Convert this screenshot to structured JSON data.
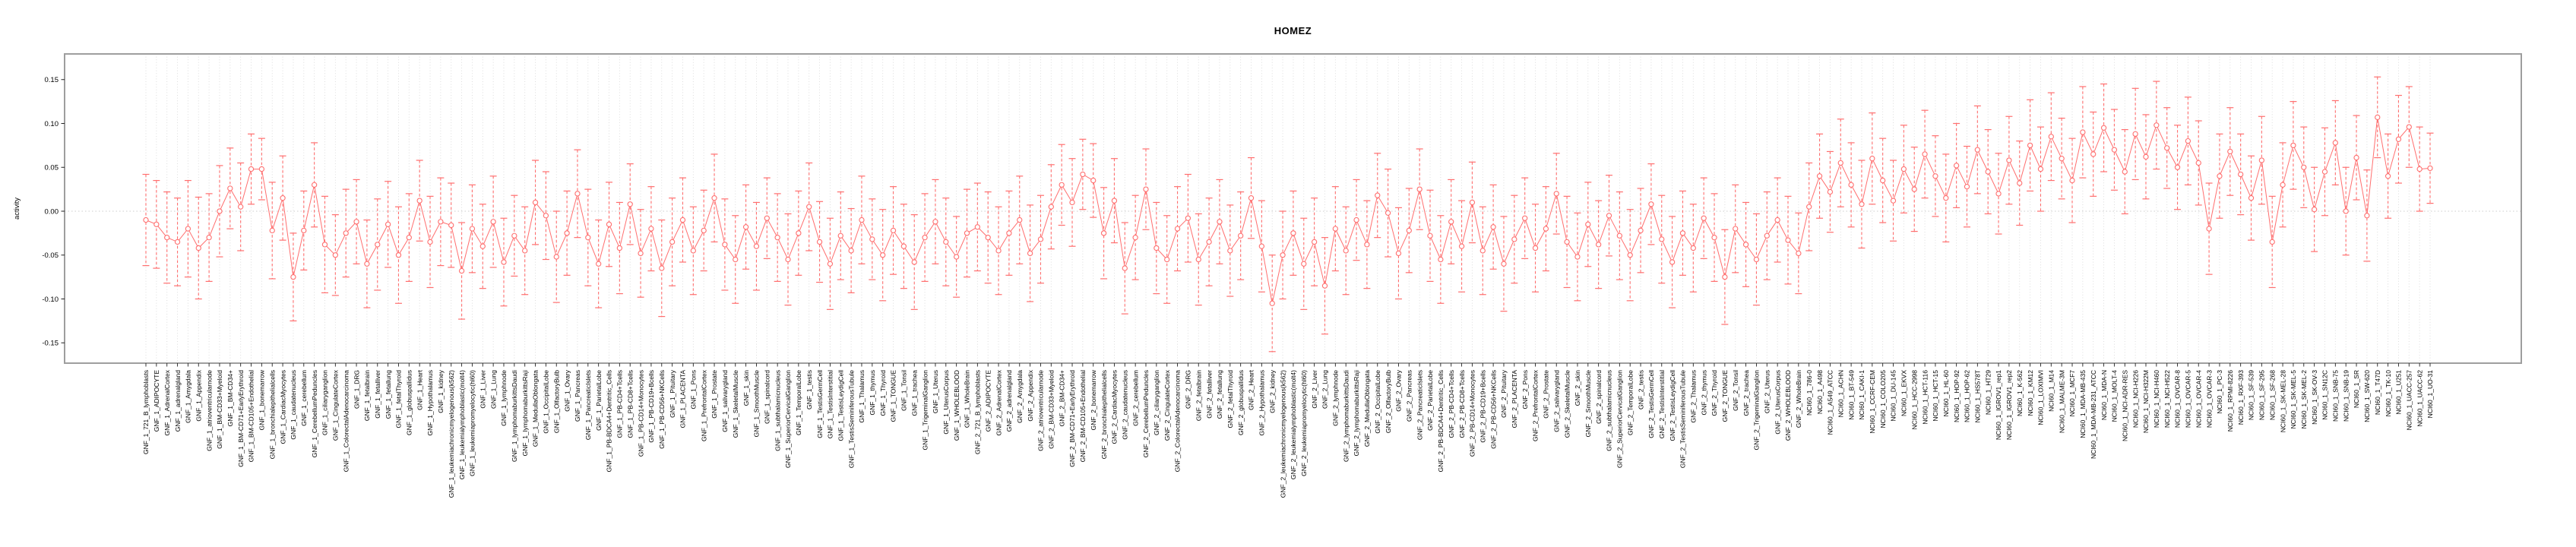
{
  "title": "HOMEZ",
  "colors": {
    "series": "#ff6f6f",
    "marker_fill": "#ffffff",
    "panel_border": "#9e9e9e",
    "gridline": "#d9d9d9",
    "zero_line": "#cccccc",
    "tick": "#222222",
    "text": "#000000",
    "background": "#ffffff"
  },
  "chart_data": {
    "type": "line",
    "title": "HOMEZ",
    "xlabel": "",
    "ylabel": "activity",
    "ylim": [
      -0.178,
      0.178
    ],
    "ytick_labels": [
      "0.15",
      "0.10",
      "0.05",
      "0.00",
      "-0.05",
      "-0.10",
      "-0.15"
    ],
    "grid": "vertical dotted gridline at every category; dotted horizontal line at y=0",
    "legend": "none",
    "marker": "open-circle with dashed error-bar whiskers and capped ends",
    "categories": [
      "GNF_1_721_B_lymphoblasts",
      "GNF_1_ADIPOCYTE",
      "GNF_1_AdrenalCortex",
      "GNF_1_adrenalgland",
      "GNF_1_Amygdala",
      "GNF_1_Appendix",
      "GNF_1_atrioventricularnode",
      "GNF_1_BM-CD33+Myeloid",
      "GNF_1_BM-CD34+",
      "GNF_1_BM-CD71+EarlyErythroid",
      "GNF_1_BM-CD105+Endothelial",
      "GNF_1_bonemarrow",
      "GNF_1_bronchialepithelialcells",
      "GNF_1_CardiacMyocytes",
      "GNF_1_caudatenucleus",
      "GNF_1_cerebellum",
      "GNF_1_CerebellumPeduncles",
      "GNF_1_ciliaryganglion",
      "GNF_1_CingulateCortex",
      "GNF_1_ColorectalAdenocarcinoma",
      "GNF_1_DRG",
      "GNF_1_fetalbrain",
      "GNF_1_fetalliver",
      "GNF_1_fetallung",
      "GNF_1_fetalThyroid",
      "GNF_1_globuspallidus",
      "GNF_1_Heart",
      "GNF_1_Hypothalamus",
      "GNF_1_kidney",
      "GNF_1_leukemiachronicmyelogenous(k562)",
      "GNF_1_leukemialymphoblastic(molt4)",
      "GNF_1_leukemiapromyelocytic(hl60)",
      "GNF_1_Liver",
      "GNF_1_Lung",
      "GNF_1_lymphnode",
      "GNF_1_lymphomaburkittsDaudi",
      "GNF_1_lymphomaburkittsRaji",
      "GNF_1_MedullaOblongata",
      "GNF_1_OccipitalLobe",
      "GNF_1_OlfactoryBulb",
      "GNF_1_Ovary",
      "GNF_1_Pancreas",
      "GNF_1_PancreaticIslets",
      "GNF_1_ParietalLobe",
      "GNF_1_PB-BDCA4+Dentritic_Cells",
      "GNF_1_PB-CD4+Tcells",
      "GNF_1_PB-CD8+Tcells",
      "GNF_1_PB-CD14+Monocytes",
      "GNF_1_PB-CD19+Bcells",
      "GNF_1_PB-CD56+NKCells",
      "GNF_1_Pituitary",
      "GNF_1_PLACENTA",
      "GNF_1_Pons",
      "GNF_1_PrefrontalCortex",
      "GNF_1_Prostate",
      "GNF_1_salivarygland",
      "GNF_1_SkeletalMuscle",
      "GNF_1_skin",
      "GNF_1_SmoothMuscle",
      "GNF_1_spinalcord",
      "GNF_1_subthalamicnucleus",
      "GNF_1_SuperiorCervicalGanglion",
      "GNF_1_TemporalLobe",
      "GNF_1_testis",
      "GNF_1_TestisGermCell",
      "GNF_1_TestisInterstitial",
      "GNF_1_TestisLeydigCell",
      "GNF_1_TestisSeminiferousTubule",
      "GNF_1_Thalamus",
      "GNF_1_thymus",
      "GNF_1_Thyroid",
      "GNF_1_TONGUE",
      "GNF_1_Tonsil",
      "GNF_1_trachea",
      "GNF_1_TrigeminalGanglion",
      "GNF_1_Uterus",
      "GNF_1_UterusCorpus",
      "GNF_1_WHOLEBLOOD",
      "GNF_1_WholeBrain",
      "GNF_2_721_B_lymphoblasts",
      "GNF_2_ADIPOCYTE",
      "GNF_2_AdrenalCortex",
      "GNF_2_adrenalgland",
      "GNF_2_Amygdala",
      "GNF_2_Appendix",
      "GNF_2_atrioventricularnode",
      "GNF_2_BM-CD33+Myeloid",
      "GNF_2_BM-CD34+",
      "GNF_2_BM-CD71+EarlyErythroid",
      "GNF_2_BM-CD105+Endothelial",
      "GNF_2_bonemarrow",
      "GNF_2_bronchialepithelialcells",
      "GNF_2_CardiacMyocytes",
      "GNF_2_caudatenucleus",
      "GNF_2_cerebellum",
      "GNF_2_CerebellumPeduncles",
      "GNF_2_ciliaryganglion",
      "GNF_2_CingulateCortex",
      "GNF_2_ColorectalAdenocarcinoma",
      "GNF_2_DRG",
      "GNF_2_fetalbrain",
      "GNF_2_fetalliver",
      "GNF_2_fetallung",
      "GNF_2_fetalThyroid",
      "GNF_2_globuspallidus",
      "GNF_2_Heart",
      "GNF_2_Hypothalamus",
      "GNF_2_kidney",
      "GNF_2_leukemiachronicmyelogenous(k562)",
      "GNF_2_leukemialymphoblastic(molt4)",
      "GNF_2_leukemiapromyelocytic(hl60)",
      "GNF_2_Liver",
      "GNF_2_Lung",
      "GNF_2_lymphnode",
      "GNF_2_lymphomaburkittsDaudi",
      "GNF_2_lymphomaburkittsRaji",
      "GNF_2_MedullaOblongata",
      "GNF_2_OccipitalLobe",
      "GNF_2_OlfactoryBulb",
      "GNF_2_Ovary",
      "GNF_2_Pancreas",
      "GNF_2_PancreaticIslets",
      "GNF_2_ParietalLobe",
      "GNF_2_PB-BDCA4+Dentritic_Cells",
      "GNF_2_PB-CD4+Tcells",
      "GNF_2_PB-CD8+Tcells",
      "GNF_2_PB-CD14+Monocytes",
      "GNF_2_PB-CD19+Bcells",
      "GNF_2_PB-CD56+NKCells",
      "GNF_2_Pituitary",
      "GNF_2_PLACENTA",
      "GNF_2_Pons",
      "GNF_2_PrefrontalCortex",
      "GNF_2_Prostate",
      "GNF_2_salivarygland",
      "GNF_2_SkeletalMuscle",
      "GNF_2_skin",
      "GNF_2_SmoothMuscle",
      "GNF_2_spinalcord",
      "GNF_2_subthalamicnucleus",
      "GNF_2_SuperiorCervicalGanglion",
      "GNF_2_TemporalLobe",
      "GNF_2_testis",
      "GNF_2_TestisGermCell",
      "GNF_2_TestisInterstitial",
      "GNF_2_TestisLeydigCell",
      "GNF_2_TestisSeminiferousTubule",
      "GNF_2_Thalamus",
      "GNF_2_thymus",
      "GNF_2_Thyroid",
      "GNF_2_TONGUE",
      "GNF_2_Tonsil",
      "GNF_2_trachea",
      "GNF_2_TrigeminalGanglion",
      "GNF_2_Uterus",
      "GNF_2_UterusCorpus",
      "GNF_2_WHOLEBLOOD",
      "GNF_2_WholeBrain",
      "NCI60_1_786-0",
      "NCI60_1_A498",
      "NCI60_1_A549_ATCC",
      "NCI60_1_ACHN",
      "NCI60_1_BT-549",
      "NCI60_1_CAKI-1",
      "NCI60_1_CCRF-CEM",
      "NCI60_1_COLO205",
      "NCI60_1_DU-145",
      "NCI60_1_EKVX",
      "NCI60_1_HCC-2998",
      "NCI60_1_HCT-116",
      "NCI60_1_HCT-15",
      "NCI60_1_HL-60",
      "NCI60_1_HOP-92",
      "NCI60_1_HOP-62",
      "NCI60_1_HS578T",
      "NCI60_1_HT29",
      "NCI60_1_IGROV1_rep1",
      "NCI60_1_IGROV1_rep2",
      "NCI60_1_K-562",
      "NCI60_1_KM12",
      "NCI60_1_LOXIMVI",
      "NCI60_1_M14",
      "NCI60_1_MALME-3M",
      "NCI60_1_MCF7",
      "NCI60_1_MDA-MB-435",
      "NCI60_1_MDA-MB-231_ATCC",
      "NCI60_1_MDA-N",
      "NCI60_1_MOLT-4",
      "NCI60_1_NCI-ADR-RES",
      "NCI60_1_NCI-H226",
      "NCI60_1_NCI-H322M",
      "NCI60_1_NCI-H460",
      "NCI60_1_NCI-H522",
      "NCI60_1_OVCAR-8",
      "NCI60_1_OVCAR-5",
      "NCI60_1_OVCAR-4",
      "NCI60_1_OVCAR-3",
      "NCI60_1_PC-3",
      "NCI60_1_RPMI-8226",
      "NCI60_1_RXF-393",
      "NCI60_1_SF-539",
      "NCI60_1_SF-295",
      "NCI60_1_SF-268",
      "NCI60_1_SK-MEL-28",
      "NCI60_1_SK-MEL-5",
      "NCI60_1_SK-MEL-2",
      "NCI60_1_SK-OV-3",
      "NCI60_1_SN12C",
      "NCI60_1_SNB-75",
      "NCI60_1_SNB-19",
      "NCI60_1_SR",
      "NCI60_1_SW-620",
      "NCI60_1_T47D",
      "NCI60_1_TK-10",
      "NCI60_1_U251",
      "NCI60_1_UACC-257",
      "NCI60_1_UACC-62",
      "NCI60_1_UO-31"
    ],
    "series": [
      {
        "name": "activity",
        "values": [
          -0.01,
          -0.015,
          -0.03,
          -0.035,
          -0.02,
          -0.042,
          -0.03,
          0.0,
          0.026,
          0.005,
          0.048,
          0.048,
          -0.022,
          0.015,
          -0.075,
          -0.022,
          0.03,
          -0.038,
          -0.05,
          -0.025,
          -0.012,
          -0.06,
          -0.038,
          -0.015,
          -0.05,
          -0.03,
          0.012,
          -0.035,
          -0.012,
          -0.016,
          -0.068,
          -0.02,
          -0.04,
          -0.012,
          -0.058,
          -0.028,
          -0.045,
          0.01,
          -0.005,
          -0.052,
          -0.025,
          0.02,
          -0.03,
          -0.06,
          -0.015,
          -0.042,
          0.008,
          -0.048,
          -0.02,
          -0.065,
          -0.035,
          -0.01,
          -0.045,
          -0.022,
          0.015,
          -0.038,
          -0.055,
          -0.018,
          -0.04,
          -0.008,
          -0.03,
          -0.055,
          -0.025,
          0.005,
          -0.035,
          -0.06,
          -0.028,
          -0.045,
          -0.01,
          -0.032,
          -0.05,
          -0.022,
          -0.04,
          -0.058,
          -0.03,
          -0.012,
          -0.035,
          -0.052,
          -0.025,
          -0.018,
          -0.03,
          -0.045,
          -0.025,
          -0.01,
          -0.048,
          -0.032,
          0.005,
          0.03,
          0.01,
          0.042,
          0.035,
          -0.025,
          0.012,
          -0.065,
          -0.03,
          0.025,
          -0.042,
          -0.055,
          -0.02,
          -0.008,
          -0.055,
          -0.035,
          -0.012,
          -0.045,
          -0.028,
          0.015,
          -0.04,
          -0.105,
          -0.05,
          -0.025,
          -0.06,
          -0.035,
          -0.085,
          -0.02,
          -0.045,
          -0.01,
          -0.038,
          0.018,
          -0.002,
          -0.048,
          -0.022,
          0.025,
          -0.028,
          -0.055,
          -0.012,
          -0.04,
          0.01,
          -0.045,
          -0.018,
          -0.06,
          -0.032,
          -0.008,
          -0.042,
          -0.02,
          0.02,
          -0.035,
          -0.052,
          -0.015,
          -0.038,
          -0.005,
          -0.028,
          -0.05,
          -0.022,
          0.008,
          -0.032,
          -0.058,
          -0.025,
          -0.042,
          -0.008,
          -0.03,
          -0.075,
          -0.02,
          -0.038,
          -0.055,
          -0.028,
          -0.01,
          -0.033,
          -0.048,
          0.005,
          0.04,
          0.022,
          0.055,
          0.03,
          0.008,
          0.06,
          0.035,
          0.012,
          0.048,
          0.025,
          0.065,
          0.04,
          0.015,
          0.052,
          0.028,
          0.07,
          0.045,
          0.02,
          0.058,
          0.032,
          0.075,
          0.048,
          0.085,
          0.06,
          0.035,
          0.09,
          0.065,
          0.095,
          0.07,
          0.045,
          0.088,
          0.062,
          0.098,
          0.072,
          0.05,
          0.08,
          0.055,
          -0.02,
          0.04,
          0.068,
          0.042,
          0.015,
          0.058,
          -0.035,
          0.03,
          0.075,
          0.05,
          0.002,
          0.045,
          0.078,
          0.0,
          0.061,
          -0.005,
          0.107,
          0.04,
          0.082,
          0.096,
          0.048,
          0.049
        ],
        "errors": [
          0.052,
          0.05,
          0.052,
          0.05,
          0.055,
          0.058,
          0.05,
          0.052,
          0.046,
          0.05,
          0.04,
          0.035,
          0.055,
          0.048,
          0.05,
          0.045,
          0.048,
          0.055,
          0.046,
          0.05,
          0.048,
          0.05,
          0.052,
          0.049,
          0.055,
          0.05,
          0.046,
          0.052,
          0.05,
          0.048,
          0.055,
          0.05,
          0.048,
          0.052,
          0.05,
          0.046,
          0.05,
          0.048,
          0.05,
          0.052,
          0.048,
          0.05,
          0.055,
          0.05,
          0.048,
          0.052,
          0.046,
          0.05,
          0.048,
          0.055,
          0.05,
          0.048,
          0.05,
          0.046,
          0.05,
          0.052,
          0.05,
          0.048,
          0.05,
          0.046,
          0.05,
          0.052,
          0.048,
          0.05,
          0.046,
          0.052,
          0.05,
          0.048,
          0.05,
          0.046,
          0.052,
          0.05,
          0.048,
          0.054,
          0.05,
          0.048,
          0.05,
          0.046,
          0.05,
          0.05,
          0.052,
          0.05,
          0.048,
          0.05,
          0.055,
          0.05,
          0.048,
          0.046,
          0.05,
          0.04,
          0.042,
          0.052,
          0.048,
          0.052,
          0.048,
          0.046,
          0.052,
          0.05,
          0.048,
          0.05,
          0.052,
          0.05,
          0.048,
          0.052,
          0.05,
          0.046,
          0.052,
          0.055,
          0.05,
          0.048,
          0.052,
          0.05,
          0.055,
          0.048,
          0.05,
          0.046,
          0.05,
          0.048,
          0.05,
          0.052,
          0.048,
          0.046,
          0.052,
          0.05,
          0.048,
          0.052,
          0.046,
          0.05,
          0.048,
          0.054,
          0.05,
          0.046,
          0.05,
          0.048,
          0.046,
          0.052,
          0.05,
          0.048,
          0.05,
          0.046,
          0.05,
          0.052,
          0.048,
          0.046,
          0.05,
          0.052,
          0.048,
          0.05,
          0.046,
          0.05,
          0.054,
          0.05,
          0.048,
          0.052,
          0.05,
          0.048,
          0.05,
          0.046,
          0.05,
          0.048,
          0.046,
          0.05,
          0.048,
          0.05,
          0.052,
          0.048,
          0.046,
          0.05,
          0.048,
          0.05,
          0.046,
          0.05,
          0.048,
          0.046,
          0.05,
          0.048,
          0.046,
          0.05,
          0.048,
          0.052,
          0.048,
          0.05,
          0.046,
          0.048,
          0.052,
          0.048,
          0.05,
          0.046,
          0.048,
          0.052,
          0.048,
          0.05,
          0.046,
          0.048,
          0.05,
          0.048,
          0.052,
          0.048,
          0.05,
          0.046,
          0.048,
          0.05,
          0.052,
          0.048,
          0.05,
          0.046,
          0.048,
          0.05,
          0.048,
          0.05,
          0.048,
          0.052,
          0.046,
          0.048,
          0.05,
          0.046,
          0.048,
          0.04
        ]
      }
    ]
  }
}
